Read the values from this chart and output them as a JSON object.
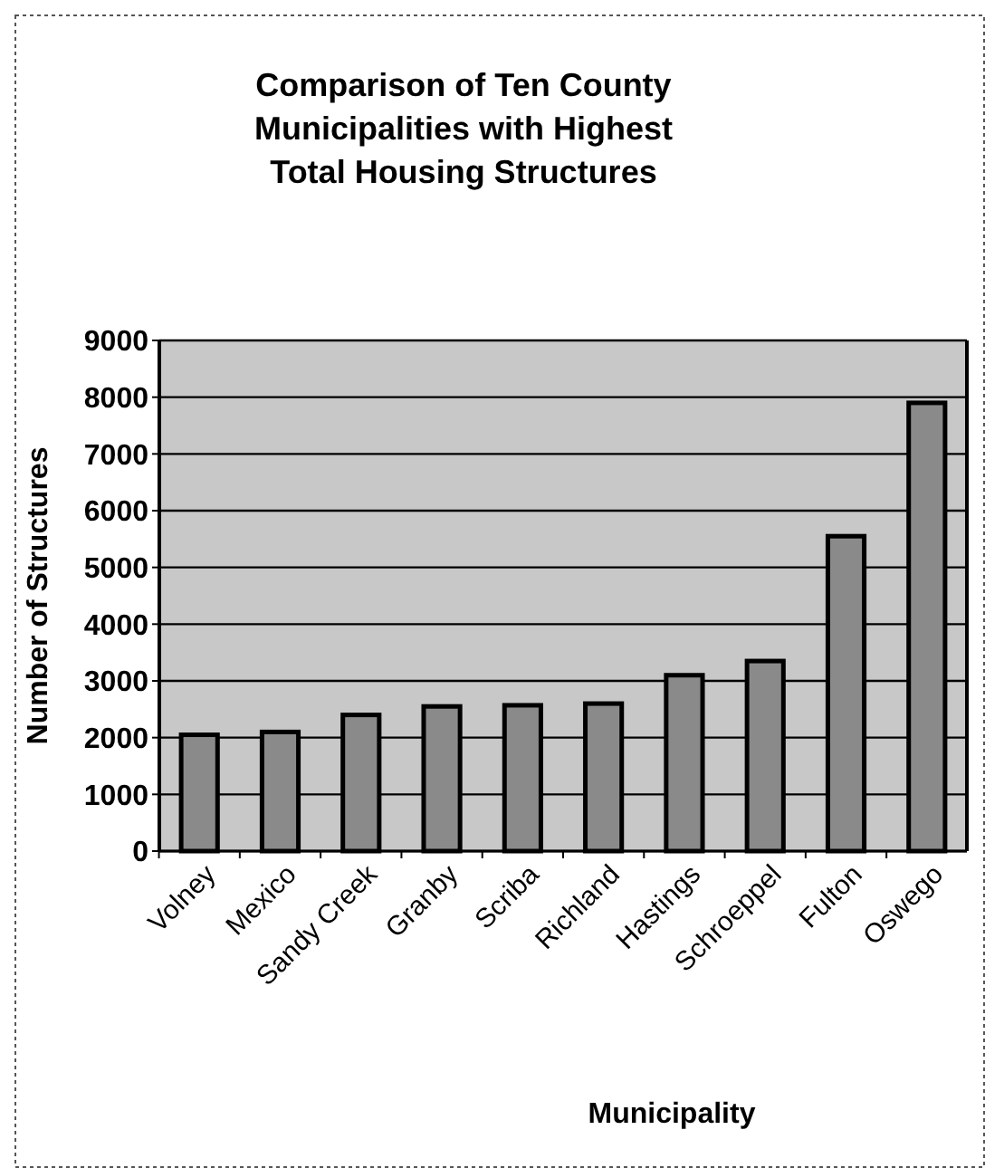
{
  "chart_data": {
    "type": "bar",
    "title": "Comparison of Ten County Municipalities with Highest Total Housing Structures",
    "xlabel": "Municipality",
    "ylabel": "Number of Structures",
    "categories": [
      "Volney",
      "Mexico",
      "Sandy Creek",
      "Granby",
      "Scriba",
      "Richland",
      "Hastings",
      "Schroeppel",
      "Fulton",
      "Oswego"
    ],
    "values": [
      2050,
      2100,
      2400,
      2550,
      2570,
      2600,
      3100,
      3350,
      5550,
      7900
    ],
    "color": "#8a8a8a",
    "ylim": [
      0,
      9000
    ],
    "yticks": [
      0,
      1000,
      2000,
      3000,
      4000,
      5000,
      6000,
      7000,
      8000,
      9000
    ],
    "grid": "y"
  }
}
